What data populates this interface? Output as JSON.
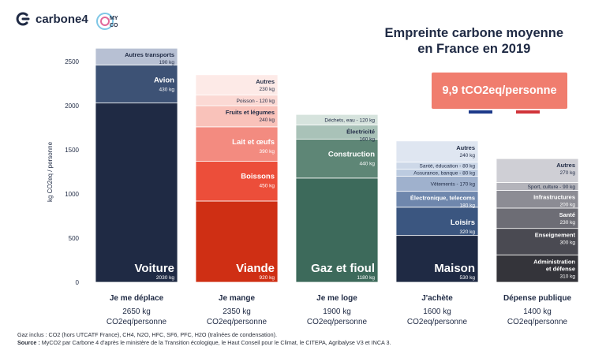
{
  "brand": {
    "logo1": "carbone4",
    "logo2_top": "MY",
    "logo2_bottom": "CO"
  },
  "title": {
    "line1": "Empreinte carbone moyenne",
    "line2": "en France en 2019"
  },
  "total": {
    "label": "9,9 tCO2eq/personne",
    "flag_colors": [
      "#1d3a8a",
      "#ffffff",
      "#d1343a"
    ]
  },
  "footer": {
    "gaz": "Gaz inclus : CO2 (hors UTCATF France), CH4, N2O, HFC, SF6, PFC, H2O (traînées de condensation).",
    "source_label": "Source :",
    "source": "MyCO2 par Carbone 4 d'après le ministère de la Transition écologique, le Haut Conseil pour le Climat, le CITEPA, Agribalyse V3 et INCA 3."
  },
  "chart_data": {
    "type": "bar",
    "stacked": true,
    "ylabel": "kg CO2eq / personne",
    "ylim": [
      0,
      2500
    ],
    "yticks": [
      0,
      500,
      1000,
      1500,
      2000,
      2500
    ],
    "grid": false,
    "categories": [
      "Je me déplace",
      "Je mange",
      "Je me loge",
      "J'achète",
      "Dépense publique"
    ],
    "totals": [
      {
        "value": "2650 kg",
        "unit": "CO2eq/personne"
      },
      {
        "value": "2350 kg",
        "unit": "CO2eq/personne"
      },
      {
        "value": "1900 kg",
        "unit": "CO2eq/personne"
      },
      {
        "value": "1600 kg",
        "unit": "CO2eq/personne"
      },
      {
        "value": "1400 kg",
        "unit": "CO2eq/personne"
      }
    ],
    "stacks": [
      {
        "segments": [
          {
            "name": "Voiture",
            "value": 2030,
            "label": "2030 kg",
            "color": "#1f2a44",
            "style": "big"
          },
          {
            "name": "Avion",
            "value": 430,
            "label": "430 kg",
            "color": "#3d5275",
            "style": "medium"
          },
          {
            "name": "Autres transports",
            "value": 190,
            "label": "190 kg",
            "color": "#b7c0d3",
            "style": "small",
            "dark": true
          }
        ]
      },
      {
        "segments": [
          {
            "name": "Viande",
            "value": 920,
            "label": "920 kg",
            "color": "#cf2f14",
            "style": "big"
          },
          {
            "name": "Boissons",
            "value": 450,
            "label": "450 kg",
            "color": "#ec4e3a",
            "style": "medium"
          },
          {
            "name": "Lait et œufs",
            "value": 390,
            "label": "390 kg",
            "color": "#f38b80",
            "style": "medium"
          },
          {
            "name": "Fruits et légumes",
            "value": 240,
            "label": "240 kg",
            "color": "#f9c2ba",
            "style": "small",
            "dark": true
          },
          {
            "name": "Poisson",
            "value": 120,
            "label": "120 kg",
            "color": "#fbd9d4",
            "style": "inline",
            "dark": true
          },
          {
            "name": "Autres",
            "value": 230,
            "label": "230 kg",
            "color": "#fdeae7",
            "style": "small",
            "dark": true
          }
        ]
      },
      {
        "segments": [
          {
            "name": "Gaz et fioul",
            "value": 1180,
            "label": "1180 kg",
            "color": "#3d6a5b",
            "style": "big"
          },
          {
            "name": "Construction",
            "value": 440,
            "label": "440 kg",
            "color": "#5e8676",
            "style": "medium"
          },
          {
            "name": "Électricité",
            "value": 160,
            "label": "160 kg",
            "color": "#a9c2b8",
            "style": "small",
            "dark": true
          },
          {
            "name": "Déchets, eau",
            "value": 120,
            "label": "120 kg",
            "color": "#d6e3dd",
            "style": "inline",
            "dark": true
          }
        ]
      },
      {
        "segments": [
          {
            "name": "Maison",
            "value": 530,
            "label": "530 kg",
            "color": "#1f2a44",
            "style": "big"
          },
          {
            "name": "Loisirs",
            "value": 320,
            "label": "320 kg",
            "color": "#3b5680",
            "style": "medium"
          },
          {
            "name": "Électronique, telecoms",
            "value": 180,
            "label": "180 kg",
            "color": "#6f87ad",
            "style": "small"
          },
          {
            "name": "Vêtements",
            "value": 170,
            "label": "170 kg",
            "color": "#9fb1cd",
            "style": "inline",
            "dark": true
          },
          {
            "name": "Assurance, banque",
            "value": 80,
            "label": "80 kg",
            "color": "#bccbe0",
            "style": "inline",
            "dark": true
          },
          {
            "name": "Santé, éducation",
            "value": 80,
            "label": "80 kg",
            "color": "#cdd8e8",
            "style": "inline",
            "dark": true
          },
          {
            "name": "Autres",
            "value": 240,
            "label": "240 kg",
            "color": "#dfe6f1",
            "style": "small",
            "dark": true
          }
        ]
      },
      {
        "segments": [
          {
            "name": "Administration et défense",
            "value": 310,
            "label": "310 kg",
            "color": "#34343a",
            "style": "small"
          },
          {
            "name": "Enseignement",
            "value": 300,
            "label": "300 kg",
            "color": "#4a4a52",
            "style": "small"
          },
          {
            "name": "Santé",
            "value": 230,
            "label": "230 kg",
            "color": "#6d6d75",
            "style": "small"
          },
          {
            "name": "Infrastructures",
            "value": 200,
            "label": "200 kg",
            "color": "#8c8c94",
            "style": "small"
          },
          {
            "name": "Sport, culture",
            "value": 90,
            "label": "90 kg",
            "color": "#b4b4bb",
            "style": "inline",
            "dark": true
          },
          {
            "name": "Autres",
            "value": 270,
            "label": "270 kg",
            "color": "#cfcfd5",
            "style": "small",
            "dark": true
          }
        ]
      }
    ]
  }
}
